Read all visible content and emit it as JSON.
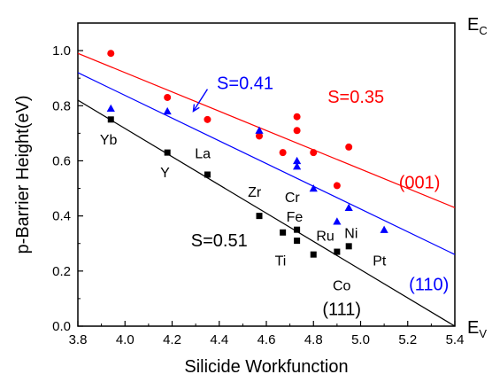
{
  "chart_data": {
    "type": "scatter",
    "xlabel": "Silicide Workfunction",
    "ylabel": "p-Barrier Height(eV)",
    "xlim": [
      3.8,
      5.4
    ],
    "ylim": [
      0.0,
      1.1
    ],
    "x_ticks": [
      "3.8",
      "4.0",
      "4.2",
      "4.4",
      "4.6",
      "4.8",
      "5.0",
      "5.2",
      "5.4"
    ],
    "y_ticks": [
      "0.0",
      "0.2",
      "0.4",
      "0.6",
      "0.8",
      "1.0"
    ],
    "grid": false,
    "series": [
      {
        "name": "(001)",
        "color": "#ff0000",
        "marker": "circle",
        "points": [
          {
            "x": 3.94,
            "y": 0.99
          },
          {
            "x": 4.18,
            "y": 0.83
          },
          {
            "x": 4.35,
            "y": 0.75
          },
          {
            "x": 4.57,
            "y": 0.69
          },
          {
            "x": 4.67,
            "y": 0.63
          },
          {
            "x": 4.73,
            "y": 0.76
          },
          {
            "x": 4.73,
            "y": 0.71
          },
          {
            "x": 4.8,
            "y": 0.63
          },
          {
            "x": 4.9,
            "y": 0.51
          },
          {
            "x": 4.95,
            "y": 0.65
          }
        ],
        "fit": {
          "x": [
            3.8,
            5.4
          ],
          "y": [
            0.99,
            0.43
          ]
        },
        "slope_label": "S=0.35"
      },
      {
        "name": "(110)",
        "color": "#0000ff",
        "marker": "triangle",
        "points": [
          {
            "x": 3.94,
            "y": 0.79
          },
          {
            "x": 4.18,
            "y": 0.78
          },
          {
            "x": 4.57,
            "y": 0.71
          },
          {
            "x": 4.73,
            "y": 0.6
          },
          {
            "x": 4.73,
            "y": 0.58
          },
          {
            "x": 4.8,
            "y": 0.5
          },
          {
            "x": 4.9,
            "y": 0.38
          },
          {
            "x": 4.95,
            "y": 0.43
          },
          {
            "x": 5.1,
            "y": 0.35
          }
        ],
        "fit": {
          "x": [
            3.8,
            5.4
          ],
          "y": [
            0.92,
            0.26
          ]
        },
        "slope_label": "S=0.41"
      },
      {
        "name": "(111)",
        "color": "#000000",
        "marker": "square",
        "points": [
          {
            "x": 3.94,
            "y": 0.75
          },
          {
            "x": 4.18,
            "y": 0.63
          },
          {
            "x": 4.35,
            "y": 0.55
          },
          {
            "x": 4.57,
            "y": 0.4
          },
          {
            "x": 4.67,
            "y": 0.34
          },
          {
            "x": 4.73,
            "y": 0.35
          },
          {
            "x": 4.73,
            "y": 0.31
          },
          {
            "x": 4.8,
            "y": 0.26
          },
          {
            "x": 4.9,
            "y": 0.27
          },
          {
            "x": 4.95,
            "y": 0.29
          }
        ],
        "fit": {
          "x": [
            3.8,
            5.4
          ],
          "y": [
            0.82,
            0.0
          ]
        },
        "slope_label": "S=0.51"
      }
    ],
    "element_labels": [
      {
        "text": "Yb",
        "x": 3.93,
        "y": 0.66
      },
      {
        "text": "Y",
        "x": 4.17,
        "y": 0.54
      },
      {
        "text": "La",
        "x": 4.33,
        "y": 0.61
      },
      {
        "text": "Zr",
        "x": 4.55,
        "y": 0.47
      },
      {
        "text": "Cr",
        "x": 4.71,
        "y": 0.45
      },
      {
        "text": "Fe",
        "x": 4.72,
        "y": 0.38
      },
      {
        "text": "Ru",
        "x": 4.85,
        "y": 0.31
      },
      {
        "text": "Ni",
        "x": 4.96,
        "y": 0.32
      },
      {
        "text": "Ti",
        "x": 4.66,
        "y": 0.22
      },
      {
        "text": "Pt",
        "x": 5.08,
        "y": 0.22
      },
      {
        "text": "Co",
        "x": 4.92,
        "y": 0.13
      }
    ],
    "slope_labels": [
      {
        "series": 0,
        "text": "S=0.35",
        "x": 4.98,
        "y": 0.81
      },
      {
        "series": 1,
        "text": "S=0.41",
        "x": 4.51,
        "y": 0.86
      },
      {
        "series": 2,
        "text": "S=0.51",
        "x": 4.4,
        "y": 0.29
      }
    ],
    "arrow": {
      "from": {
        "x": 4.35,
        "y": 0.86
      },
      "to": {
        "x": 4.29,
        "y": 0.78
      },
      "color": "#0000ff"
    },
    "orientation_labels": [
      {
        "series": 0,
        "text": "(001)",
        "x": 5.25,
        "y": 0.5
      },
      {
        "series": 1,
        "text": "(110)",
        "x": 5.29,
        "y": 0.13
      },
      {
        "series": 2,
        "text": "(111)",
        "x": 4.92,
        "y": 0.04
      }
    ],
    "band_labels": [
      {
        "main": "E",
        "sub": "C",
        "y": 1.1
      },
      {
        "main": "E",
        "sub": "V",
        "y": 0.0
      }
    ]
  }
}
